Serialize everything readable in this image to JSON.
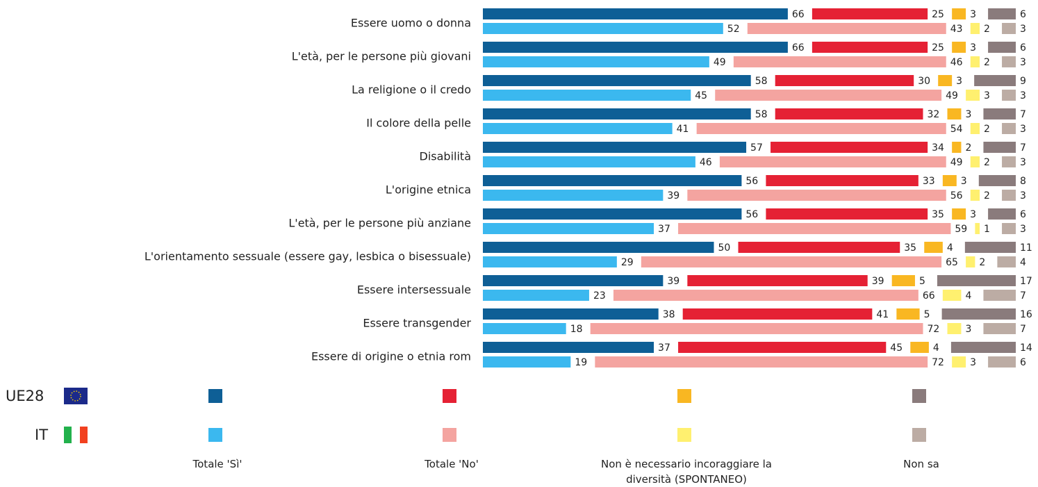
{
  "chart_data": {
    "type": "bar",
    "categories": [
      "Essere uomo o donna",
      "L'età, per le persone più giovani",
      "La religione o il credo",
      "Il colore della pelle",
      "Disabilità",
      "L'origine etnica",
      "L'età, per le persone più anziane",
      "L'orientamento sessuale (essere gay, lesbica o bisessuale)",
      "Essere intersessuale",
      "Essere transgender",
      "Essere di origine o etnia rom"
    ],
    "groups": [
      "UE28",
      "IT"
    ],
    "xlim": [
      0,
      100
    ],
    "series": [
      {
        "name": "Totale 'Sì'",
        "colors": [
          "#0e5f96",
          "#3bb8ef"
        ],
        "values": [
          [
            66,
            52
          ],
          [
            66,
            49
          ],
          [
            58,
            45
          ],
          [
            58,
            41
          ],
          [
            57,
            46
          ],
          [
            56,
            39
          ],
          [
            56,
            37
          ],
          [
            50,
            29
          ],
          [
            39,
            23
          ],
          [
            38,
            18
          ],
          [
            37,
            19
          ]
        ]
      },
      {
        "name": "Totale 'No'",
        "colors": [
          "#e52134",
          "#f4a4a0"
        ],
        "values": [
          [
            25,
            43
          ],
          [
            25,
            46
          ],
          [
            30,
            49
          ],
          [
            32,
            54
          ],
          [
            34,
            49
          ],
          [
            33,
            56
          ],
          [
            35,
            59
          ],
          [
            35,
            65
          ],
          [
            39,
            66
          ],
          [
            41,
            72
          ],
          [
            45,
            72
          ]
        ]
      },
      {
        "name": "Non è necessario incoraggiare la diversità (SPONTANEO)",
        "colors": [
          "#f9b722",
          "#fff06f"
        ],
        "values": [
          [
            3,
            2
          ],
          [
            3,
            2
          ],
          [
            3,
            3
          ],
          [
            3,
            2
          ],
          [
            2,
            2
          ],
          [
            3,
            2
          ],
          [
            3,
            1
          ],
          [
            4,
            2
          ],
          [
            5,
            4
          ],
          [
            5,
            3
          ],
          [
            4,
            3
          ]
        ]
      },
      {
        "name": "Non sa",
        "colors": [
          "#8a7b7c",
          "#bcaca4"
        ],
        "values": [
          [
            6,
            3
          ],
          [
            6,
            3
          ],
          [
            9,
            3
          ],
          [
            7,
            3
          ],
          [
            7,
            3
          ],
          [
            8,
            3
          ],
          [
            6,
            3
          ],
          [
            11,
            4
          ],
          [
            17,
            7
          ],
          [
            16,
            7
          ],
          [
            14,
            6
          ]
        ]
      }
    ]
  }
}
